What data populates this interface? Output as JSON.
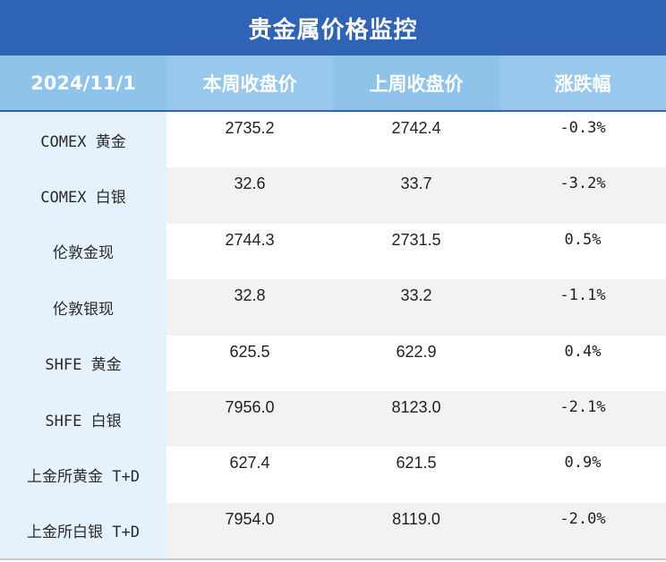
{
  "title": "贵金属价格监控",
  "header": {
    "date": "2024/11/1",
    "this_week": "本周收盘价",
    "last_week": "上周收盘价",
    "change": "涨跌幅"
  },
  "rows": [
    {
      "name": "COMEX 黄金",
      "this_week": "2735.2",
      "last_week": "2742.4",
      "change": "-0.3%"
    },
    {
      "name": "COMEX 白银",
      "this_week": "32.6",
      "last_week": "33.7",
      "change": "-3.2%"
    },
    {
      "name": "伦敦金现",
      "this_week": "2744.3",
      "last_week": "2731.5",
      "change": "0.5%"
    },
    {
      "name": "伦敦银现",
      "this_week": "32.8",
      "last_week": "33.2",
      "change": "-1.1%"
    },
    {
      "name": "SHFE 黄金",
      "this_week": "625.5",
      "last_week": "622.9",
      "change": "0.4%"
    },
    {
      "name": "SHFE 白银",
      "this_week": "7956.0",
      "last_week": "8123.0",
      "change": "-2.1%"
    },
    {
      "name": "上金所黄金 T+D",
      "this_week": "627.4",
      "last_week": "621.5",
      "change": "0.9%"
    },
    {
      "name": "上金所白银 T+D",
      "this_week": "7954.0",
      "last_week": "8119.0",
      "change": "-2.0%"
    }
  ],
  "colors": {
    "title_bg": "#2f63b6",
    "header_bg": "#8fc3ea",
    "name_col_bg": "#e6f2fb",
    "alt_row_bg": "#f2f2f2"
  }
}
